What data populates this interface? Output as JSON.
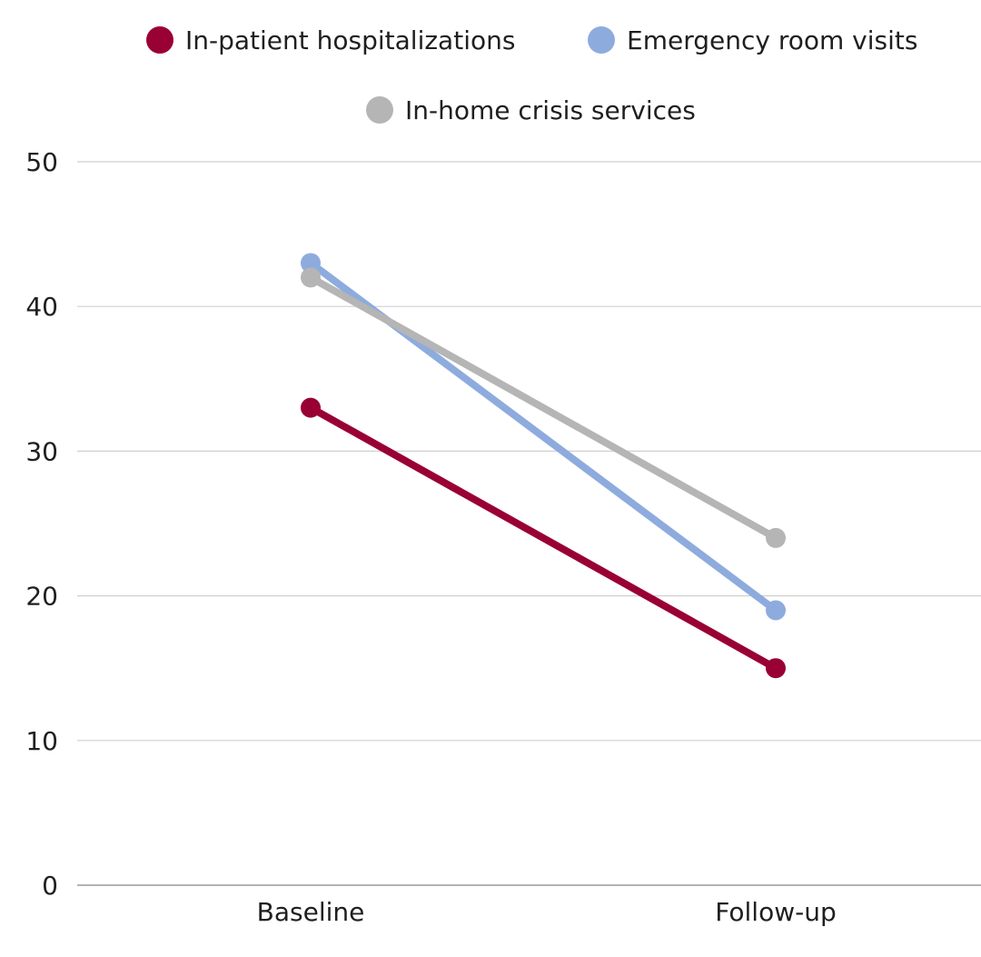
{
  "chart_data": {
    "type": "line",
    "title": "",
    "xlabel": "",
    "ylabel": "",
    "categories": [
      "Baseline",
      "Follow-up"
    ],
    "ylim": [
      0,
      50
    ],
    "yticks": [
      0,
      10,
      20,
      30,
      40,
      50
    ],
    "grid": true,
    "legend_position": "top-center",
    "series": [
      {
        "name": "In-patient hospitalizations",
        "values": [
          33,
          15
        ],
        "color": "#990033"
      },
      {
        "name": "Emergency room visits",
        "values": [
          43,
          19
        ],
        "color": "#8EABDE"
      },
      {
        "name": "In-home crisis services",
        "values": [
          42,
          24
        ],
        "color": "#B5B5B5"
      }
    ]
  }
}
